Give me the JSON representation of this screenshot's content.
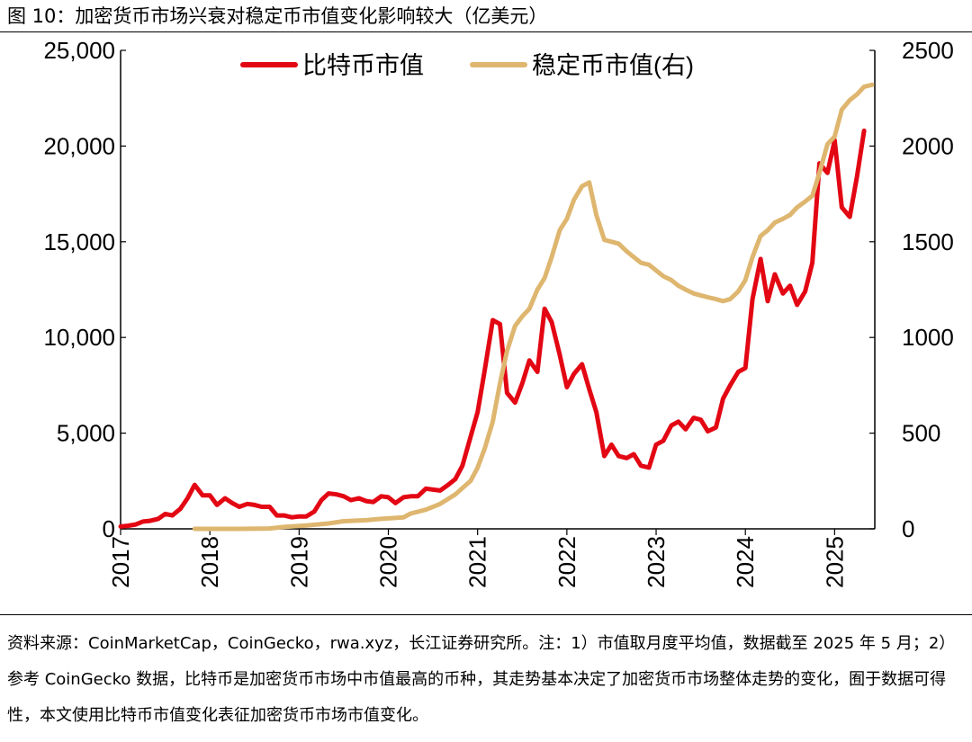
{
  "figure_title": "图 10：加密货币市场兴衰对稳定币市值变化影响较大（亿美元）",
  "source_note": "资料来源：CoinMarketCap，CoinGecko，rwa.xyz，长江证券研究所。注：1）市值取月度平均值，数据截至 2025 年 5 月；2）参考 CoinGecko 数据，比特币是加密货币市场中市值最高的币种，其走势基本决定了加密货币市场整体走势的变化，囿于数据可得性，本文使用比特币市值变化表征加密货币市场市值变化。",
  "chart_data": {
    "type": "line",
    "title": "",
    "xlabel": "",
    "ylabel": "",
    "y2label": "",
    "x_range": [
      2017.0,
      2025.45
    ],
    "x_ticks": [
      "2017",
      "2018",
      "2019",
      "2020",
      "2021",
      "2022",
      "2023",
      "2024",
      "2025"
    ],
    "ylim": [
      0,
      25000
    ],
    "y_ticks": [
      "0",
      "5,000",
      "10,000",
      "15,000",
      "20,000",
      "25,000"
    ],
    "y2lim": [
      0,
      2500
    ],
    "y2_ticks": [
      "0",
      "500",
      "1000",
      "1500",
      "2000",
      "2500"
    ],
    "legend_position": "top",
    "grid": false,
    "series": [
      {
        "name": "比特币市值",
        "axis": "left",
        "color": "#e30613",
        "points": [
          [
            2017.0,
            120
          ],
          [
            2017.08,
            160
          ],
          [
            2017.17,
            230
          ],
          [
            2017.25,
            380
          ],
          [
            2017.33,
            420
          ],
          [
            2017.42,
            520
          ],
          [
            2017.5,
            780
          ],
          [
            2017.58,
            700
          ],
          [
            2017.67,
            1050
          ],
          [
            2017.75,
            1600
          ],
          [
            2017.83,
            2300
          ],
          [
            2017.92,
            1750
          ],
          [
            2018.0,
            1750
          ],
          [
            2018.08,
            1250
          ],
          [
            2018.17,
            1600
          ],
          [
            2018.25,
            1350
          ],
          [
            2018.33,
            1150
          ],
          [
            2018.42,
            1300
          ],
          [
            2018.5,
            1250
          ],
          [
            2018.58,
            1150
          ],
          [
            2018.67,
            1150
          ],
          [
            2018.75,
            700
          ],
          [
            2018.83,
            700
          ],
          [
            2018.92,
            600
          ],
          [
            2019.0,
            650
          ],
          [
            2019.08,
            650
          ],
          [
            2019.17,
            900
          ],
          [
            2019.25,
            1500
          ],
          [
            2019.33,
            1850
          ],
          [
            2019.42,
            1800
          ],
          [
            2019.5,
            1700
          ],
          [
            2019.58,
            1500
          ],
          [
            2019.67,
            1600
          ],
          [
            2019.75,
            1450
          ],
          [
            2019.83,
            1400
          ],
          [
            2019.92,
            1700
          ],
          [
            2020.0,
            1650
          ],
          [
            2020.08,
            1350
          ],
          [
            2020.17,
            1650
          ],
          [
            2020.25,
            1700
          ],
          [
            2020.33,
            1700
          ],
          [
            2020.42,
            2100
          ],
          [
            2020.5,
            2050
          ],
          [
            2020.58,
            2000
          ],
          [
            2020.67,
            2300
          ],
          [
            2020.75,
            2600
          ],
          [
            2020.83,
            3300
          ],
          [
            2020.92,
            4800
          ],
          [
            2021.0,
            6100
          ],
          [
            2021.08,
            8300
          ],
          [
            2021.17,
            10900
          ],
          [
            2021.25,
            10700
          ],
          [
            2021.33,
            7100
          ],
          [
            2021.42,
            6600
          ],
          [
            2021.5,
            7600
          ],
          [
            2021.58,
            8800
          ],
          [
            2021.67,
            8200
          ],
          [
            2021.75,
            11500
          ],
          [
            2021.83,
            10800
          ],
          [
            2021.92,
            9100
          ],
          [
            2022.0,
            7400
          ],
          [
            2022.08,
            8100
          ],
          [
            2022.17,
            8600
          ],
          [
            2022.25,
            7300
          ],
          [
            2022.33,
            6100
          ],
          [
            2022.42,
            3800
          ],
          [
            2022.5,
            4400
          ],
          [
            2022.58,
            3800
          ],
          [
            2022.67,
            3700
          ],
          [
            2022.75,
            3900
          ],
          [
            2022.83,
            3300
          ],
          [
            2022.92,
            3200
          ],
          [
            2023.0,
            4400
          ],
          [
            2023.08,
            4600
          ],
          [
            2023.17,
            5400
          ],
          [
            2023.25,
            5600
          ],
          [
            2023.33,
            5200
          ],
          [
            2023.42,
            5800
          ],
          [
            2023.5,
            5700
          ],
          [
            2023.58,
            5100
          ],
          [
            2023.67,
            5300
          ],
          [
            2023.75,
            6800
          ],
          [
            2023.83,
            7500
          ],
          [
            2023.92,
            8200
          ],
          [
            2024.0,
            8400
          ],
          [
            2024.08,
            12000
          ],
          [
            2024.17,
            14100
          ],
          [
            2024.25,
            11900
          ],
          [
            2024.33,
            13300
          ],
          [
            2024.42,
            12300
          ],
          [
            2024.5,
            12700
          ],
          [
            2024.58,
            11700
          ],
          [
            2024.67,
            12400
          ],
          [
            2024.75,
            13900
          ],
          [
            2024.83,
            19100
          ],
          [
            2024.92,
            18600
          ],
          [
            2025.0,
            20300
          ],
          [
            2025.08,
            16800
          ],
          [
            2025.17,
            16300
          ],
          [
            2025.25,
            18400
          ],
          [
            2025.33,
            20800
          ]
        ]
      },
      {
        "name": "稳定币市值(右)",
        "axis": "right",
        "color": "#deb66f",
        "points": [
          [
            2017.83,
            0
          ],
          [
            2018.33,
            0
          ],
          [
            2018.67,
            2
          ],
          [
            2018.83,
            10
          ],
          [
            2019.08,
            18
          ],
          [
            2019.33,
            28
          ],
          [
            2019.5,
            40
          ],
          [
            2019.75,
            45
          ],
          [
            2019.92,
            52
          ],
          [
            2020.17,
            60
          ],
          [
            2020.25,
            80
          ],
          [
            2020.42,
            100
          ],
          [
            2020.58,
            130
          ],
          [
            2020.75,
            180
          ],
          [
            2020.92,
            250
          ],
          [
            2021.0,
            320
          ],
          [
            2021.08,
            420
          ],
          [
            2021.17,
            560
          ],
          [
            2021.25,
            760
          ],
          [
            2021.33,
            930
          ],
          [
            2021.42,
            1060
          ],
          [
            2021.5,
            1110
          ],
          [
            2021.58,
            1150
          ],
          [
            2021.67,
            1250
          ],
          [
            2021.75,
            1310
          ],
          [
            2021.83,
            1420
          ],
          [
            2021.92,
            1560
          ],
          [
            2022.0,
            1620
          ],
          [
            2022.08,
            1720
          ],
          [
            2022.17,
            1790
          ],
          [
            2022.25,
            1810
          ],
          [
            2022.33,
            1640
          ],
          [
            2022.42,
            1510
          ],
          [
            2022.5,
            1500
          ],
          [
            2022.58,
            1490
          ],
          [
            2022.67,
            1450
          ],
          [
            2022.75,
            1420
          ],
          [
            2022.83,
            1390
          ],
          [
            2022.92,
            1380
          ],
          [
            2023.0,
            1350
          ],
          [
            2023.08,
            1320
          ],
          [
            2023.17,
            1300
          ],
          [
            2023.25,
            1270
          ],
          [
            2023.33,
            1250
          ],
          [
            2023.42,
            1230
          ],
          [
            2023.5,
            1220
          ],
          [
            2023.58,
            1210
          ],
          [
            2023.67,
            1200
          ],
          [
            2023.75,
            1190
          ],
          [
            2023.83,
            1200
          ],
          [
            2023.92,
            1240
          ],
          [
            2024.0,
            1300
          ],
          [
            2024.08,
            1420
          ],
          [
            2024.17,
            1530
          ],
          [
            2024.25,
            1560
          ],
          [
            2024.33,
            1600
          ],
          [
            2024.42,
            1620
          ],
          [
            2024.5,
            1640
          ],
          [
            2024.58,
            1680
          ],
          [
            2024.67,
            1710
          ],
          [
            2024.75,
            1740
          ],
          [
            2024.83,
            1860
          ],
          [
            2024.92,
            2010
          ],
          [
            2025.0,
            2050
          ],
          [
            2025.08,
            2190
          ],
          [
            2025.17,
            2240
          ],
          [
            2025.25,
            2270
          ],
          [
            2025.33,
            2310
          ],
          [
            2025.42,
            2320
          ]
        ]
      }
    ]
  }
}
